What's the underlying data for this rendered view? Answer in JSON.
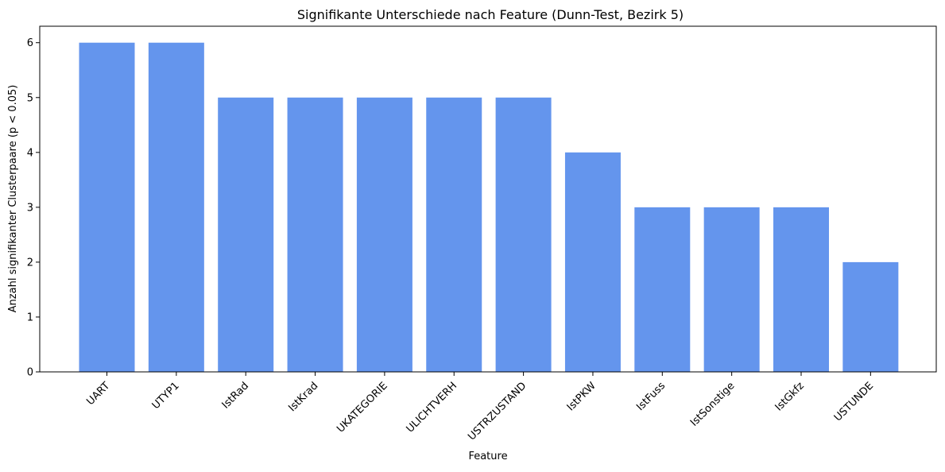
{
  "chart_data": {
    "type": "bar",
    "title": "Signifikante Unterschiede nach Feature (Dunn-Test, Bezirk 5)",
    "xlabel": "Feature",
    "ylabel": "Anzahl signifikanter Clusterpaare (p < 0.05)",
    "categories": [
      "UART",
      "UTYP1",
      "IstRad",
      "IstKrad",
      "UKATEGORIE",
      "ULICHTVERH",
      "USTRZUSTAND",
      "IstPKW",
      "IstFuss",
      "IstSonstige",
      "IstGkfz",
      "USTUNDE"
    ],
    "values": [
      6,
      6,
      5,
      5,
      5,
      5,
      5,
      4,
      3,
      3,
      3,
      2
    ],
    "ylim": [
      0,
      6.3
    ],
    "yticks": [
      0,
      1,
      2,
      3,
      4,
      5,
      6
    ],
    "grid": false,
    "bar_color": "#6495ED"
  }
}
